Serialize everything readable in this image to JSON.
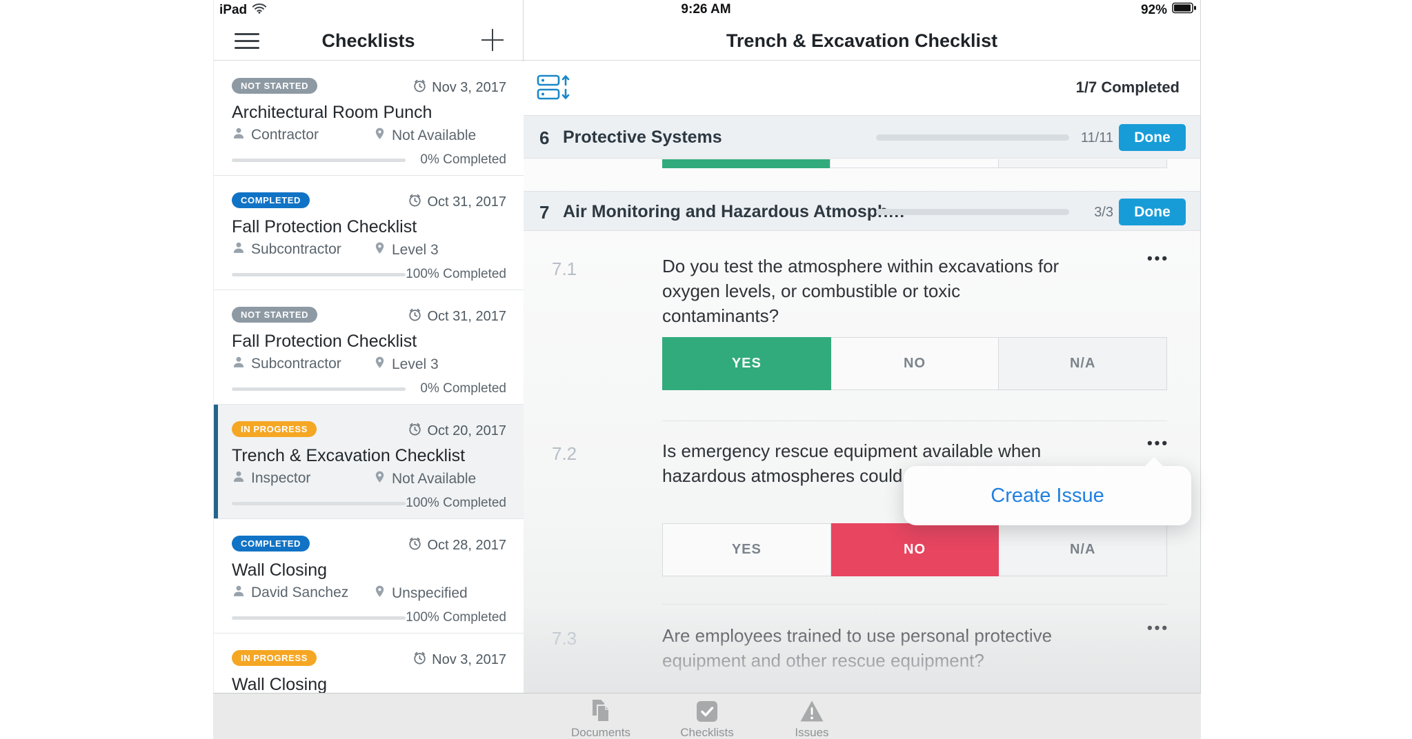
{
  "status_bar": {
    "device": "iPad",
    "time": "9:26 AM",
    "battery_percent": "92%"
  },
  "sidebar": {
    "title": "Checklists",
    "cards": [
      {
        "badge": "NOT STARTED",
        "status": "not-started",
        "date": "Nov 3, 2017",
        "title": "Architectural Room Punch",
        "assignee": "Contractor",
        "location": "Not Available",
        "progress_label": "0% Completed",
        "progress_pct": 0
      },
      {
        "badge": "COMPLETED",
        "status": "completed",
        "date": "Oct 31, 2017",
        "title": "Fall Protection Checklist",
        "assignee": "Subcontractor",
        "location": "Level 3",
        "progress_label": "100% Completed",
        "progress_pct": 100
      },
      {
        "badge": "NOT STARTED",
        "status": "not-started",
        "date": "Oct 31, 2017",
        "title": "Fall Protection Checklist",
        "assignee": "Subcontractor",
        "location": "Level 3",
        "progress_label": "0% Completed",
        "progress_pct": 0
      },
      {
        "badge": "IN PROGRESS",
        "status": "in-progress",
        "date": "Oct 20, 2017",
        "title": "Trench & Excavation Checklist",
        "assignee": "Inspector",
        "location": "Not Available",
        "progress_label": "100% Completed",
        "progress_pct": 100,
        "selected": true
      },
      {
        "badge": "COMPLETED",
        "status": "completed",
        "date": "Oct 28, 2017",
        "title": "Wall Closing",
        "assignee": "David Sanchez",
        "location": "Unspecified",
        "progress_label": "100% Completed",
        "progress_pct": 100
      },
      {
        "badge": "IN PROGRESS",
        "status": "in-progress",
        "date": "Nov 3, 2017",
        "title": "Wall Closing"
      }
    ]
  },
  "main": {
    "title": "Trench & Excavation Checklist",
    "summary": "1/7 Completed",
    "more_label": "•••",
    "sections": [
      {
        "number": "6",
        "title": "Protective Systems",
        "count": "11/11",
        "done_label": "Done",
        "progress_pct": 100
      },
      {
        "number": "7",
        "title": "Air Monitoring and Hazardous Atmosph…",
        "count": "3/3",
        "done_label": "Done",
        "progress_pct": 100
      }
    ],
    "questions": [
      {
        "number": "7.1",
        "line1": "Do you test the atmosphere within excavations for",
        "line2": "oxygen levels, or combustible or toxic contaminants?",
        "answers": [
          "YES",
          "NO",
          "N/A"
        ],
        "selected": "YES"
      },
      {
        "number": "7.2",
        "line1": "Is emergency rescue equipment available when",
        "line2": "hazardous atmospheres could",
        "answers": [
          "YES",
          "NO",
          "N/A"
        ],
        "selected": "NO"
      },
      {
        "number": "7.3",
        "line1": "Are employees trained to use personal protective",
        "line2": "equipment and other rescue equipment?"
      }
    ],
    "popup": {
      "label": "Create Issue"
    }
  },
  "tab_bar": {
    "tabs": [
      {
        "label": "Documents"
      },
      {
        "label": "Checklists"
      },
      {
        "label": "Issues"
      }
    ]
  },
  "colors": {
    "accent_blue": "#189CD8",
    "progress_blue": "#1A87C8",
    "selected_green": "#31AB7C",
    "selected_red": "#E84560",
    "badge_orange": "#F5A623",
    "badge_blue": "#1173C5",
    "badge_gray": "#8D99A3",
    "link_blue": "#1F80E0"
  },
  "icons": [
    "wifi-icon",
    "battery-icon",
    "hamburger-icon",
    "plus-icon",
    "alarm-clock-icon",
    "person-icon",
    "location-pin-icon",
    "sort-sections-icon",
    "more-ellipsis-icon",
    "documents-icon",
    "checklists-icon",
    "issues-warning-icon"
  ]
}
